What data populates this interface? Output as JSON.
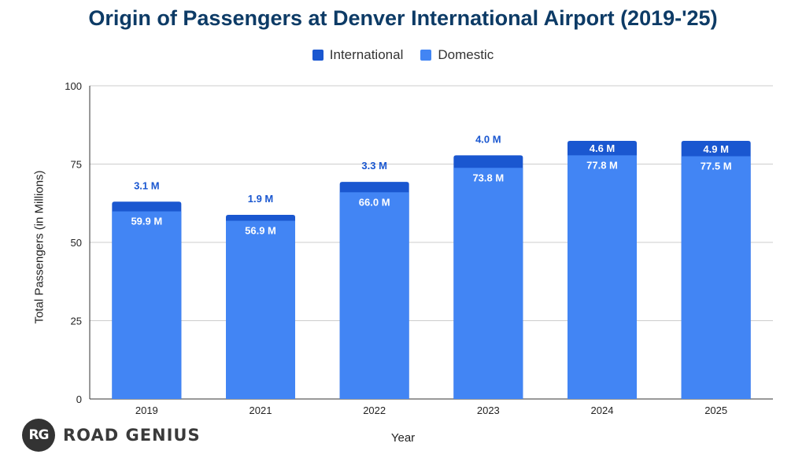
{
  "chart_data": {
    "type": "bar",
    "stacked": true,
    "title": "Origin of Passengers at Denver International Airport (2019-'25)",
    "xlabel": "Year",
    "ylabel": "Total Passengers (in Millions)",
    "ylim": [
      0,
      100
    ],
    "yticks": [
      "0",
      "25",
      "50",
      "75",
      "100"
    ],
    "categories": [
      "2019",
      "2021",
      "2022",
      "2023",
      "2024",
      "2025"
    ],
    "legend_position": "top-center",
    "series": [
      {
        "name": "Domestic",
        "color": "#4285f4",
        "values": [
          59.9,
          56.9,
          66.0,
          73.8,
          77.8,
          77.5
        ],
        "labels": [
          "59.9 M",
          "56.9 M",
          "66.0 M",
          "73.8 M",
          "77.8 M",
          "77.5 M"
        ]
      },
      {
        "name": "International",
        "color": "#1a57d0",
        "values": [
          3.1,
          1.9,
          3.3,
          4.0,
          4.6,
          4.9
        ],
        "labels": [
          "3.1 M",
          "1.9 M",
          "3.3 M",
          "4.0 M",
          "4.6 M",
          "4.9 M"
        ]
      }
    ]
  },
  "legend": {
    "items": [
      {
        "label": "International",
        "color": "#1a57d0"
      },
      {
        "label": "Domestic",
        "color": "#4285f4"
      }
    ]
  },
  "logo": {
    "badge": "RG",
    "text": "ROAD GENIUS"
  }
}
